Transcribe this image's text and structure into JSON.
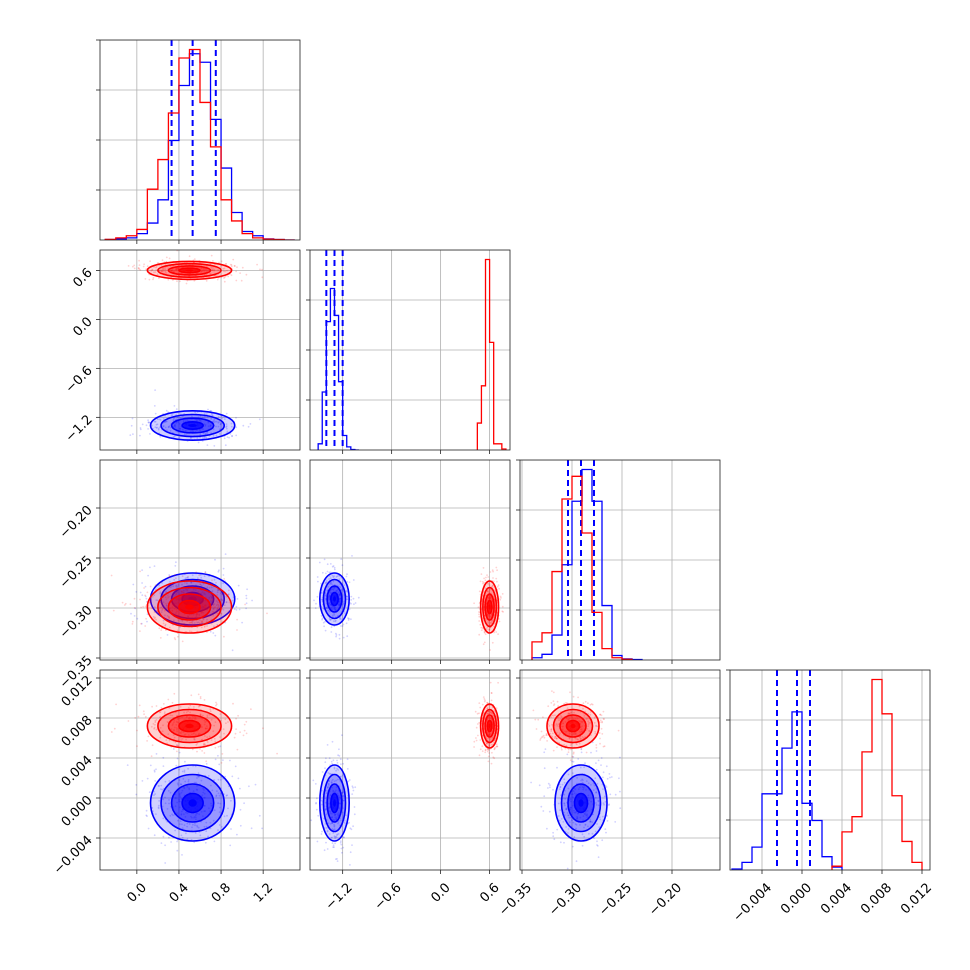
{
  "chart_data": {
    "type": "corner",
    "colors": {
      "blue": "#0000ff",
      "red": "#ff0000"
    },
    "grid": true,
    "parameters": [
      {
        "lim": [
          -0.35,
          1.55
        ],
        "ticks": [
          0.0,
          0.4,
          0.8,
          1.2
        ],
        "tick_labels": [
          "0.0",
          "0.4",
          "0.8",
          "1.2"
        ]
      },
      {
        "lim": [
          -1.6,
          0.85
        ],
        "ticks": [
          -1.2,
          -0.6,
          0.0,
          0.6
        ],
        "tick_labels": [
          "−1.2",
          "−0.6",
          "0.0",
          "0.6"
        ]
      },
      {
        "lim": [
          -0.352,
          -0.152
        ],
        "ticks": [
          -0.35,
          -0.3,
          -0.25,
          -0.2
        ],
        "tick_labels": [
          "−0.35",
          "−0.30",
          "−0.25",
          "−0.20"
        ]
      },
      {
        "lim": [
          -0.0072,
          0.0128
        ],
        "ticks": [
          -0.004,
          0.0,
          0.004,
          0.008,
          0.012
        ],
        "tick_labels": [
          "−0.004",
          "0.000",
          "0.004",
          "0.008",
          "0.012"
        ]
      }
    ],
    "series": [
      {
        "color": "#0000ff",
        "mean": [
          0.53,
          -1.3,
          -0.291,
          -0.0005
        ],
        "sd": [
          0.2,
          0.09,
          0.013,
          0.0019
        ],
        "quantile_lines": [
          [
            0.33,
            0.53,
            0.75
          ],
          [
            -1.4,
            -1.3,
            -1.2
          ],
          [
            -0.304,
            -0.291,
            -0.278
          ],
          [
            -0.0025,
            -0.0005,
            0.0008
          ]
        ],
        "histograms": [
          {
            "edges": [
              -0.3,
              -0.2,
              -0.1,
              0.0,
              0.1,
              0.2,
              0.3,
              0.4,
              0.5,
              0.6,
              0.7,
              0.8,
              0.9,
              1.0,
              1.1,
              1.2,
              1.3,
              1.4,
              1.5
            ],
            "counts": [
              0.2,
              0.5,
              1,
              3,
              8,
              19,
              47,
              73,
              88,
              84,
              57,
              34,
              13,
              4,
              2,
              0.5,
              0.2,
              0
            ]
          },
          {
            "edges": [
              -1.5,
              -1.45,
              -1.4,
              -1.35,
              -1.3,
              -1.25,
              -1.2,
              -1.15,
              -1.1,
              -1.05,
              -1.0
            ],
            "counts": [
              3,
              28,
              62,
              78,
              65,
              33,
              7,
              1.5,
              0.2,
              0
            ]
          },
          {
            "edges": [
              -0.34,
              -0.33,
              -0.32,
              -0.31,
              -0.3,
              -0.29,
              -0.28,
              -0.27,
              -0.26,
              -0.25,
              -0.24,
              -0.23
            ],
            "counts": [
              1,
              2.5,
              11,
              42,
              70,
              84,
              70,
              24,
              2,
              0.5,
              0.2
            ]
          },
          {
            "edges": [
              -0.007,
              -0.006,
              -0.005,
              -0.004,
              -0.003,
              -0.002,
              -0.001,
              0.0,
              0.001,
              0.002,
              0.003,
              0.004
            ],
            "counts": [
              0.5,
              4,
              12,
              40,
              40,
              64,
              83,
              35,
              26,
              7,
              1.5
            ]
          }
        ]
      },
      {
        "color": "#ff0000",
        "mean": [
          0.5,
          0.6,
          -0.299,
          0.0072
        ],
        "sd": [
          0.2,
          0.055,
          0.013,
          0.0011
        ],
        "quantile_lines": [],
        "histograms": [
          {
            "edges": [
              -0.3,
              -0.2,
              -0.1,
              0.0,
              0.1,
              0.2,
              0.3,
              0.4,
              0.5,
              0.6,
              0.7,
              0.8,
              0.9,
              1.0,
              1.1,
              1.2,
              1.3,
              1.4,
              1.5
            ],
            "counts": [
              0.3,
              1,
              2,
              5,
              24,
              38,
              60,
              86,
              90,
              65,
              44,
              19,
              9,
              3,
              1,
              0.4,
              0.2,
              0
            ]
          },
          {
            "edges": [
              0.45,
              0.5,
              0.55,
              0.6,
              0.65,
              0.7,
              0.75,
              0.8
            ],
            "counts": [
              13,
              31,
              92,
              52,
              3,
              3,
              0.5
            ]
          },
          {
            "edges": [
              -0.34,
              -0.33,
              -0.32,
              -0.31,
              -0.3,
              -0.29,
              -0.28,
              -0.27,
              -0.26,
              -0.25,
              -0.24
            ],
            "counts": [
              8,
              12,
              39,
              71,
              81,
              56,
              21,
              5,
              1,
              0.3
            ]
          },
          {
            "edges": [
              0.003,
              0.004,
              0.005,
              0.006,
              0.007,
              0.008,
              0.009,
              0.01,
              0.011,
              0.012
            ],
            "counts": [
              2,
              20,
              28,
              62,
              100,
              82,
              39,
              15,
              4
            ]
          }
        ]
      }
    ]
  }
}
